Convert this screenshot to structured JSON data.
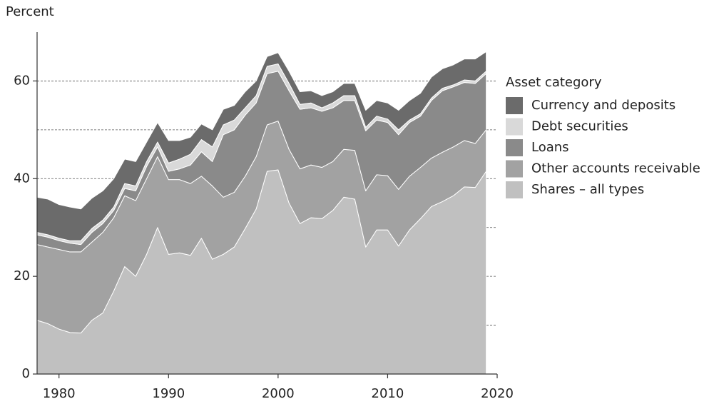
{
  "chart_data": {
    "type": "stacked_area",
    "y_label": "Percent",
    "legend_title": "Asset category",
    "legend": "right",
    "x": [
      1978,
      1979,
      1980,
      1981,
      1982,
      1983,
      1984,
      1985,
      1986,
      1987,
      1988,
      1989,
      1990,
      1991,
      1992,
      1993,
      1994,
      1995,
      1996,
      1997,
      1998,
      1999,
      2000,
      2001,
      2002,
      2003,
      2004,
      2005,
      2006,
      2007,
      2008,
      2009,
      2010,
      2011,
      2012,
      2013,
      2014,
      2015,
      2016,
      2017,
      2018,
      2019
    ],
    "xlim": [
      1978,
      2020
    ],
    "xticks": [
      1980,
      1990,
      2000,
      2010,
      2020
    ],
    "ylim": [
      0,
      70
    ],
    "yticks": [
      0,
      20,
      40,
      60
    ],
    "gridlines": [
      10,
      20,
      30,
      40,
      50,
      60
    ],
    "series": [
      {
        "name": "Shares – all types",
        "color": "#c0c0c0",
        "values": [
          11,
          10.3,
          9.2,
          8.5,
          8.4,
          11,
          12.5,
          17,
          22,
          20,
          24.5,
          30,
          24.5,
          24.8,
          24.3,
          27.8,
          23.5,
          24.5,
          26,
          29.8,
          33.8,
          41.5,
          41.8,
          35,
          30.8,
          32,
          31.8,
          33.5,
          36.2,
          35.8,
          26,
          29.5,
          29.5,
          26.2,
          29.5,
          31.8,
          34.3,
          35.3,
          36.5,
          38.3,
          38.2,
          41.5
        ]
      },
      {
        "name": "Other accounts receivable",
        "color": "#a2a2a2",
        "values": [
          15.5,
          15.7,
          16.3,
          16.5,
          16.6,
          16,
          16.5,
          15,
          14.5,
          15.5,
          15.5,
          14.5,
          15.3,
          15,
          14.7,
          12.7,
          15,
          11.7,
          11.2,
          10.7,
          10.7,
          9.5,
          10,
          11,
          11.2,
          10.8,
          10.5,
          10,
          9.8,
          10,
          11.5,
          11.3,
          11.1,
          11.6,
          11,
          10.5,
          9.9,
          10.1,
          10,
          9.5,
          9,
          8.5
        ]
      },
      {
        "name": "Loans",
        "color": "#8a8a8a",
        "values": [
          2,
          2,
          1.8,
          1.8,
          1.5,
          2,
          1.8,
          1.5,
          1.5,
          2,
          2.5,
          2,
          1.7,
          2.2,
          3.8,
          5,
          5,
          12.8,
          12.8,
          12.5,
          11,
          10.5,
          10.2,
          12,
          12.2,
          11.7,
          11.5,
          11,
          10,
          10.2,
          12.3,
          11.2,
          10.9,
          11.2,
          11,
          10.5,
          11.8,
          12.6,
          12.3,
          11.9,
          12.3,
          11.5
        ]
      },
      {
        "name": "Debt securities",
        "color": "#d9d9d9",
        "values": [
          0.5,
          0.5,
          0.5,
          0.5,
          0.8,
          0.8,
          0.7,
          0.7,
          1,
          1,
          1,
          1,
          1.7,
          2,
          2.2,
          2.5,
          3,
          2,
          2,
          1.5,
          1.5,
          1.5,
          1.5,
          1.5,
          1,
          1,
          0.7,
          1,
          1,
          1,
          0.7,
          0.8,
          0.7,
          1,
          0.5,
          0.5,
          0.5,
          0.5,
          0.4,
          0.5,
          0.5,
          0.5
        ]
      },
      {
        "name": "Currency and deposits",
        "color": "#6b6b6b",
        "values": [
          7.2,
          7.3,
          6.9,
          6.9,
          6.5,
          6.2,
          6,
          5.8,
          5,
          5,
          4,
          4,
          4.6,
          3.8,
          3.5,
          3.2,
          3.5,
          3.2,
          3,
          3.3,
          3,
          2,
          2.3,
          2.5,
          2.6,
          2.5,
          2.5,
          2.3,
          2.5,
          2.5,
          3.5,
          3.2,
          3.3,
          4,
          4,
          4.2,
          4.3,
          4,
          4.1,
          4.3,
          4.5,
          4
        ]
      }
    ]
  }
}
